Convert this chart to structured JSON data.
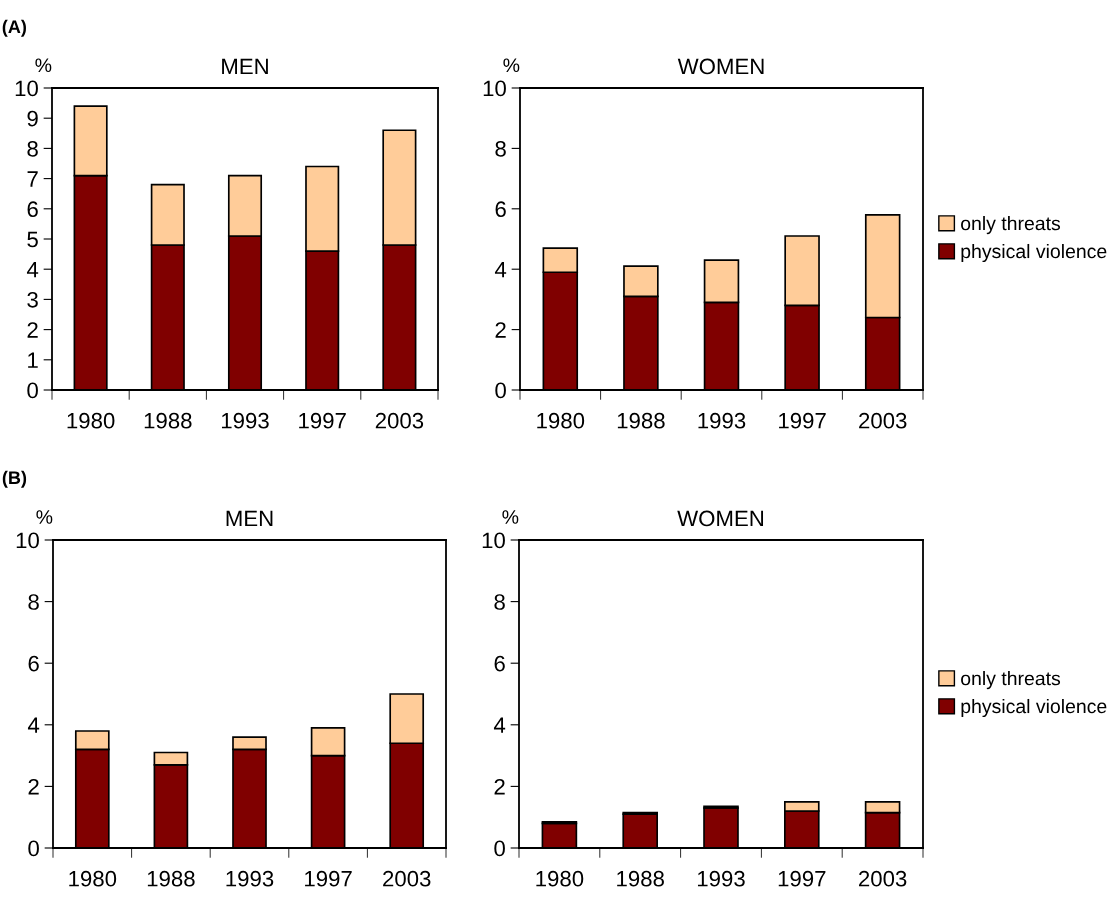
{
  "chart_data": [
    {
      "type": "bar",
      "title": "MEN",
      "ylabel": "%",
      "annotations": [
        "(A)"
      ],
      "categories": [
        "1980",
        "1988",
        "1993",
        "1997",
        "2003"
      ],
      "stacked": true,
      "ylim": [
        0,
        10
      ],
      "yticks": [
        0,
        1,
        2,
        3,
        4,
        5,
        6,
        7,
        8,
        9,
        10
      ],
      "legend": false,
      "series": [
        {
          "color": "#800000",
          "values": [
            7.1,
            4.8,
            5.1,
            4.6,
            4.8
          ]
        },
        {
          "color": "#ffcc99",
          "values": [
            2.3,
            2.0,
            2.0,
            2.8,
            3.8
          ]
        }
      ]
    },
    {
      "type": "bar",
      "title": "WOMEN",
      "ylabel": "%",
      "categories": [
        "1980",
        "1988",
        "1993",
        "1997",
        "2003"
      ],
      "stacked": true,
      "ylim": [
        0,
        10
      ],
      "yticks": [
        0,
        2,
        4,
        6,
        8,
        10
      ],
      "legend": "right",
      "series": [
        {
          "name": "physical violence",
          "color": "#800000",
          "values": [
            3.9,
            3.1,
            2.9,
            2.8,
            2.4
          ]
        },
        {
          "name": "only threats",
          "color": "#ffcc99",
          "values": [
            0.8,
            1.0,
            1.4,
            2.3,
            3.4
          ]
        }
      ]
    },
    {
      "type": "bar",
      "title": "MEN",
      "ylabel": "%",
      "annotations": [
        "(B)"
      ],
      "categories": [
        "1980",
        "1988",
        "1993",
        "1997",
        "2003"
      ],
      "stacked": true,
      "ylim": [
        0,
        10
      ],
      "yticks": [
        0,
        2,
        4,
        6,
        8,
        10
      ],
      "legend": false,
      "series": [
        {
          "color": "#800000",
          "values": [
            3.2,
            2.7,
            3.2,
            3.0,
            3.4
          ]
        },
        {
          "color": "#ffcc99",
          "values": [
            0.6,
            0.4,
            0.4,
            0.9,
            1.6
          ]
        }
      ]
    },
    {
      "type": "bar",
      "title": "WOMEN",
      "ylabel": "%",
      "categories": [
        "1980",
        "1988",
        "1993",
        "1997",
        "2003"
      ],
      "stacked": true,
      "ylim": [
        0,
        10
      ],
      "yticks": [
        0,
        2,
        4,
        6,
        8,
        10
      ],
      "legend": "right",
      "series": [
        {
          "name": "physical violence",
          "color": "#800000",
          "values": [
            0.8,
            1.1,
            1.3,
            1.2,
            1.15
          ]
        },
        {
          "name": "only threats",
          "color": "#ffcc99",
          "values": [
            0.05,
            0.05,
            0.05,
            0.3,
            0.35
          ]
        }
      ]
    }
  ]
}
